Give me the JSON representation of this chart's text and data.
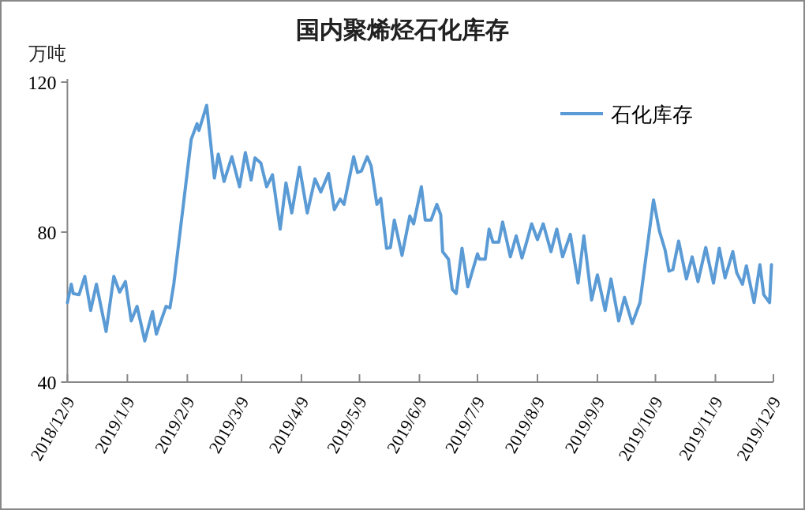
{
  "chart_data": {
    "type": "line",
    "title": "国内聚烯烃石化库存",
    "ylabel": "万吨",
    "x": [
      "2018-12-09",
      "2018-12-11",
      "2018-12-12",
      "2018-12-15",
      "2018-12-18",
      "2018-12-21",
      "2018-12-24",
      "2018-12-29",
      "2019-01-02",
      "2019-01-05",
      "2019-01-08",
      "2019-01-11",
      "2019-01-14",
      "2019-01-18",
      "2019-01-22",
      "2019-01-24",
      "2019-01-29",
      "2019-01-31",
      "2019-02-02",
      "2019-02-11",
      "2019-02-14",
      "2019-02-15",
      "2019-02-19",
      "2019-02-23",
      "2019-02-25",
      "2019-02-28",
      "2019-03-04",
      "2019-03-08",
      "2019-03-11",
      "2019-03-14",
      "2019-03-16",
      "2019-03-19",
      "2019-03-22",
      "2019-03-25",
      "2019-03-29",
      "2019-04-01",
      "2019-04-04",
      "2019-04-08",
      "2019-04-12",
      "2019-04-16",
      "2019-04-19",
      "2019-04-23",
      "2019-04-26",
      "2019-04-29",
      "2019-05-01",
      "2019-05-06",
      "2019-05-08",
      "2019-05-10",
      "2019-05-13",
      "2019-05-15",
      "2019-05-18",
      "2019-05-20",
      "2019-05-23",
      "2019-05-25",
      "2019-05-27",
      "2019-05-31",
      "2019-06-04",
      "2019-06-06",
      "2019-06-10",
      "2019-06-12",
      "2019-06-15",
      "2019-06-18",
      "2019-06-20",
      "2019-06-21",
      "2019-06-24",
      "2019-06-26",
      "2019-06-28",
      "2019-07-01",
      "2019-07-04",
      "2019-07-09",
      "2019-07-10",
      "2019-07-13",
      "2019-07-15",
      "2019-07-17",
      "2019-07-20",
      "2019-07-22",
      "2019-07-26",
      "2019-07-29",
      "2019-08-01",
      "2019-08-03",
      "2019-08-06",
      "2019-08-09",
      "2019-08-12",
      "2019-08-16",
      "2019-08-19",
      "2019-08-22",
      "2019-08-26",
      "2019-08-30",
      "2019-09-02",
      "2019-09-06",
      "2019-09-09",
      "2019-09-13",
      "2019-09-16",
      "2019-09-20",
      "2019-09-23",
      "2019-09-27",
      "2019-10-01",
      "2019-10-08",
      "2019-10-11",
      "2019-10-14",
      "2019-10-16",
      "2019-10-18",
      "2019-10-21",
      "2019-10-25",
      "2019-10-28",
      "2019-10-31",
      "2019-11-04",
      "2019-11-08",
      "2019-11-11",
      "2019-11-14",
      "2019-11-18",
      "2019-11-20",
      "2019-11-23",
      "2019-11-25",
      "2019-11-28",
      "2019-11-29",
      "2019-12-02",
      "2019-12-04",
      "2019-12-07",
      "2019-12-08"
    ],
    "series": [
      {
        "name": "石化库存",
        "color": "#5b9bd5",
        "values": [
          61.2,
          66.1,
          63.6,
          63.3,
          68.2,
          59.1,
          66.1,
          53.5,
          68.2,
          64.0,
          66.8,
          56.3,
          60.2,
          51.0,
          58.8,
          52.8,
          60.2,
          59.8,
          66.1,
          104.7,
          108.9,
          107.1,
          113.8,
          94.4,
          100.8,
          93.5,
          100.1,
          92.1,
          101.2,
          93.9,
          99.8,
          98.4,
          92.1,
          95.3,
          80.8,
          93.1,
          85.1,
          97.3,
          85.1,
          94.2,
          90.7,
          95.6,
          86.0,
          88.8,
          87.4,
          100.1,
          95.9,
          96.3,
          100.1,
          97.7,
          87.4,
          89.0,
          75.7,
          75.9,
          83.2,
          73.8,
          84.3,
          82.2,
          92.1,
          83.2,
          83.2,
          87.4,
          84.6,
          74.8,
          72.8,
          64.7,
          63.6,
          75.7,
          65.4,
          74.2,
          72.8,
          72.8,
          80.8,
          77.3,
          77.3,
          82.7,
          73.4,
          79.0,
          73.1,
          76.6,
          82.2,
          78.0,
          82.2,
          74.8,
          80.8,
          73.4,
          79.4,
          66.4,
          79.0,
          61.9,
          68.6,
          59.1,
          67.5,
          56.3,
          62.6,
          55.6,
          61.2,
          88.6,
          80.4,
          75.2,
          69.6,
          70.0,
          77.6,
          67.5,
          73.4,
          66.8,
          75.9,
          66.4,
          75.7,
          67.8,
          74.8,
          69.2,
          66.1,
          71.0,
          63.6,
          61.2,
          71.3,
          63.3,
          61.2,
          71.3
        ]
      }
    ],
    "xlim": [
      "2018-12-09",
      "2019-12-09"
    ],
    "xticks": [
      {
        "value": "2018-12-09",
        "label": "2018/12/9"
      },
      {
        "value": "2019-01-09",
        "label": "2019/1/9"
      },
      {
        "value": "2019-02-09",
        "label": "2019/2/9"
      },
      {
        "value": "2019-03-09",
        "label": "2019/3/9"
      },
      {
        "value": "2019-04-09",
        "label": "2019/4/9"
      },
      {
        "value": "2019-05-09",
        "label": "2019/5/9"
      },
      {
        "value": "2019-06-09",
        "label": "2019/6/9"
      },
      {
        "value": "2019-07-09",
        "label": "2019/7/9"
      },
      {
        "value": "2019-08-09",
        "label": "2019/8/9"
      },
      {
        "value": "2019-09-09",
        "label": "2019/9/9"
      },
      {
        "value": "2019-10-09",
        "label": "2019/10/9"
      },
      {
        "value": "2019-11-09",
        "label": "2019/11/9"
      },
      {
        "value": "2019-12-09",
        "label": "2019/12/9"
      }
    ],
    "ylim": [
      40,
      120
    ],
    "yticks": [
      40,
      80,
      120
    ],
    "grid": false,
    "legend": "top right"
  }
}
